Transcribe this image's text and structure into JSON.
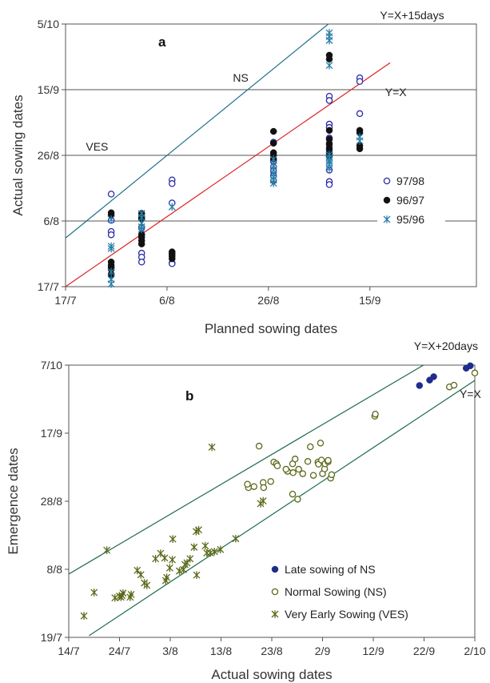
{
  "colors": {
    "blue_open": "#2a2aa8",
    "black": "#111111",
    "teal_star": "#2a7fa8",
    "line_a_upper": "#1f6e8c",
    "line_a_lower": "#e02020",
    "line_b": "#1f6b4a",
    "navy": "#1e2d8c",
    "olive": "#5a6a1a",
    "grid": "#555555"
  },
  "chart_data": [
    {
      "type": "scatter",
      "panel_label": "a",
      "xlabel": "Planned sowing dates",
      "ylabel": "Actual sowing dates",
      "xlim_days": [
        0,
        81
      ],
      "ylim_days": [
        0,
        80
      ],
      "xticks": [
        {
          "day": 0,
          "label": "17/7"
        },
        {
          "day": 20,
          "label": "6/8"
        },
        {
          "day": 40,
          "label": "26/8"
        },
        {
          "day": 60,
          "label": "15/9"
        }
      ],
      "yticks": [
        {
          "day": 0,
          "label": "17/7"
        },
        {
          "day": 20,
          "label": "6/8"
        },
        {
          "day": 40,
          "label": "26/8"
        },
        {
          "day": 60,
          "label": "15/9"
        },
        {
          "day": 80,
          "label": "5/10"
        }
      ],
      "grid": "horizontal",
      "legend_position": "right",
      "annotations": [
        {
          "text": "Y=X+15days",
          "x": 62,
          "y": 81.5
        },
        {
          "text": "Y=X",
          "x": 63,
          "y": 58
        },
        {
          "text": "NS",
          "x": 33,
          "y": 62.5
        },
        {
          "text": "VES",
          "x": 4,
          "y": 41.5
        }
      ],
      "lines": [
        {
          "label": "Y=X+15days",
          "points": [
            [
              0,
              14.8
            ],
            [
              53,
              81.5
            ]
          ],
          "color": "line_a_upper"
        },
        {
          "label": "Y=X",
          "points": [
            [
              0,
              0
            ],
            [
              64,
              68.2
            ]
          ],
          "color": "line_a_lower"
        }
      ],
      "series": [
        {
          "name": "97/98",
          "marker": "open-circle",
          "color": "blue_open",
          "points": [
            [
              9,
              28.2
            ],
            [
              9,
              20.2
            ],
            [
              9,
              16.8
            ],
            [
              9,
              15.8
            ],
            [
              9,
              3.5
            ],
            [
              15,
              21.5
            ],
            [
              15,
              18.0
            ],
            [
              15,
              15.9
            ],
            [
              15,
              10.2
            ],
            [
              15,
              9.0
            ],
            [
              15,
              7.5
            ],
            [
              21,
              32.5
            ],
            [
              21,
              31.4
            ],
            [
              21,
              25.5
            ],
            [
              21,
              7.2
            ],
            [
              21,
              7.0
            ],
            [
              41,
              44.0
            ],
            [
              41,
              38.3
            ],
            [
              41,
              36.5
            ],
            [
              41,
              35.2
            ],
            [
              41,
              33.8
            ],
            [
              41,
              32.3
            ],
            [
              52,
              49.5
            ],
            [
              52,
              48.5
            ],
            [
              52,
              45.3
            ],
            [
              52,
              43.2
            ],
            [
              52,
              40.3
            ],
            [
              52,
              35.5
            ],
            [
              52,
              32.0
            ],
            [
              52,
              31.1
            ],
            [
              52,
              58.0
            ],
            [
              52,
              56.7
            ],
            [
              52,
              41.6
            ],
            [
              58,
              63.6
            ],
            [
              58,
              62.5
            ],
            [
              58,
              52.7
            ]
          ]
        },
        {
          "name": "96/97",
          "marker": "filled-circle",
          "color": "black",
          "points": [
            [
              9,
              22.5
            ],
            [
              9,
              21.8
            ],
            [
              9,
              7.5
            ],
            [
              9,
              6.5
            ],
            [
              9,
              5.8
            ],
            [
              9,
              5.3
            ],
            [
              9,
              3.8
            ],
            [
              15,
              22.3
            ],
            [
              15,
              21.2
            ],
            [
              15,
              20.6
            ],
            [
              15,
              15.8
            ],
            [
              15,
              15.0
            ],
            [
              15,
              14.0
            ],
            [
              15,
              13.0
            ],
            [
              21,
              10.6
            ],
            [
              21,
              10.0
            ],
            [
              21,
              9.3
            ],
            [
              21,
              8.5
            ],
            [
              41,
              47.3
            ],
            [
              41,
              43.7
            ],
            [
              41,
              40.8
            ],
            [
              41,
              40.0
            ],
            [
              41,
              38.9
            ],
            [
              52,
              70.5
            ],
            [
              52,
              69.3
            ],
            [
              52,
              47.6
            ],
            [
              52,
              44.9
            ],
            [
              52,
              43.6
            ],
            [
              52,
              42.2
            ],
            [
              52,
              40.9
            ],
            [
              52,
              39.7
            ],
            [
              58,
              47.6
            ],
            [
              58,
              46.8
            ],
            [
              58,
              42.9
            ],
            [
              58,
              42.0
            ]
          ]
        },
        {
          "name": "95/96",
          "marker": "asterisk",
          "color": "teal_star",
          "points": [
            [
              9,
              20.5
            ],
            [
              9,
              12.3
            ],
            [
              9,
              11.6
            ],
            [
              9,
              4.5
            ],
            [
              9,
              2.2
            ],
            [
              9,
              0.8
            ],
            [
              15,
              22.3
            ],
            [
              15,
              21.0
            ],
            [
              15,
              19.3
            ],
            [
              15,
              18.2
            ],
            [
              15,
              17.5
            ],
            [
              21,
              24.3
            ],
            [
              41,
              38.8
            ],
            [
              41,
              36.8
            ],
            [
              41,
              35.6
            ],
            [
              41,
              34.4
            ],
            [
              41,
              33.4
            ],
            [
              41,
              32.5
            ],
            [
              41,
              31.5
            ],
            [
              52,
              77.3
            ],
            [
              52,
              76.2
            ],
            [
              52,
              75.0
            ],
            [
              52,
              67.4
            ],
            [
              52,
              40.2
            ],
            [
              52,
              39.3
            ],
            [
              52,
              38.5
            ],
            [
              52,
              38.0
            ],
            [
              52,
              37.3
            ],
            [
              52,
              36.1
            ],
            [
              58,
              45.6
            ],
            [
              58,
              44.4
            ]
          ]
        }
      ]
    },
    {
      "type": "scatter",
      "panel_label": "b",
      "xlabel": "Actual sowing dates",
      "ylabel": "Emergence dates",
      "xlim_days": [
        0,
        80
      ],
      "ylim_days": [
        0,
        80
      ],
      "xticks": [
        {
          "day": 0,
          "label": "14/7"
        },
        {
          "day": 10,
          "label": "24/7"
        },
        {
          "day": 20,
          "label": "3/8"
        },
        {
          "day": 30,
          "label": "13/8"
        },
        {
          "day": 40,
          "label": "23/8"
        },
        {
          "day": 50,
          "label": "2/9"
        },
        {
          "day": 60,
          "label": "12/9"
        },
        {
          "day": 70,
          "label": "22/9"
        },
        {
          "day": 80,
          "label": "2/10"
        }
      ],
      "yticks": [
        {
          "day": 0,
          "label": "19/7"
        },
        {
          "day": 20,
          "label": "8/8"
        },
        {
          "day": 40,
          "label": "28/8"
        },
        {
          "day": 60,
          "label": "17/9"
        },
        {
          "day": 80,
          "label": "7/10"
        }
      ],
      "grid": "none",
      "legend_position": "bottom-right",
      "annotations": [
        {
          "text": "Y=X+20days",
          "x": 68,
          "y": 84.5
        },
        {
          "text": "Y=X",
          "x": 77,
          "y": 70.3
        }
      ],
      "lines": [
        {
          "label": "Y=X+20days",
          "points": [
            [
              0,
              18.6
            ],
            [
              75,
              84.5
            ]
          ],
          "color": "line_b"
        },
        {
          "label": "Y=X",
          "points": [
            [
              4,
              0.5
            ],
            [
              80,
              75.5
            ]
          ],
          "color": "line_b"
        }
      ],
      "series": [
        {
          "name": "Late sowing of NS",
          "marker": "filled-circle",
          "color": "navy",
          "points": [
            [
              69.1,
              74.0
            ],
            [
              71.1,
              75.6
            ],
            [
              71.9,
              76.6
            ],
            [
              78.3,
              79.1
            ],
            [
              79.1,
              79.8
            ]
          ]
        },
        {
          "name": "Normal Sowing (NS)",
          "marker": "open-circle",
          "color": "olive",
          "points": [
            [
              37.5,
              56.2
            ],
            [
              40.4,
              51.5
            ],
            [
              40.9,
              51.0
            ],
            [
              41.1,
              50.4
            ],
            [
              43.1,
              48.8
            ],
            [
              44.2,
              48.4
            ],
            [
              45.3,
              49.4
            ],
            [
              46.1,
              48.1
            ],
            [
              47.1,
              51.7
            ],
            [
              47.6,
              56.0
            ],
            [
              48.2,
              47.6
            ],
            [
              49.1,
              51.5
            ],
            [
              49.2,
              50.9
            ],
            [
              49.8,
              52.1
            ],
            [
              49.6,
              57.1
            ],
            [
              50.0,
              48.1
            ],
            [
              50.4,
              49.5
            ],
            [
              50.5,
              51.0
            ],
            [
              51.1,
              51.6
            ],
            [
              51.1,
              52.0
            ],
            [
              51.6,
              46.8
            ],
            [
              51.8,
              47.8
            ],
            [
              42.8,
              49.4
            ],
            [
              44.1,
              51.0
            ],
            [
              44.6,
              52.4
            ],
            [
              39.8,
              45.8
            ],
            [
              38.3,
              45.5
            ],
            [
              36.5,
              44.3
            ],
            [
              35.4,
              44.0
            ],
            [
              35.2,
              45.0
            ],
            [
              44.1,
              42.1
            ],
            [
              45.1,
              40.6
            ],
            [
              38.4,
              44.0
            ],
            [
              60.3,
              65.0
            ],
            [
              60.4,
              65.6
            ],
            [
              75.0,
              73.6
            ],
            [
              75.9,
              74.1
            ],
            [
              80.0,
              77.7
            ]
          ]
        },
        {
          "name": "Very Early Sowing (VES)",
          "marker": "asterisk",
          "color": "olive",
          "points": [
            [
              3.0,
              6.3
            ],
            [
              5.0,
              13.2
            ],
            [
              7.5,
              25.6
            ],
            [
              9.1,
              11.6
            ],
            [
              10.0,
              12.1
            ],
            [
              10.3,
              11.8
            ],
            [
              10.5,
              12.3
            ],
            [
              10.7,
              13.0
            ],
            [
              12.3,
              12.6
            ],
            [
              12.1,
              11.8
            ],
            [
              13.5,
              19.7
            ],
            [
              14.2,
              18.4
            ],
            [
              14.9,
              16.0
            ],
            [
              15.4,
              15.3
            ],
            [
              17.1,
              23.1
            ],
            [
              18.1,
              24.7
            ],
            [
              18.9,
              23.3
            ],
            [
              19.1,
              16.7
            ],
            [
              19.3,
              17.6
            ],
            [
              19.9,
              20.4
            ],
            [
              20.4,
              22.8
            ],
            [
              20.5,
              28.9
            ],
            [
              21.8,
              19.5
            ],
            [
              22.6,
              19.9
            ],
            [
              22.9,
              21.4
            ],
            [
              23.3,
              21.9
            ],
            [
              23.9,
              23.1
            ],
            [
              24.7,
              26.5
            ],
            [
              25.1,
              31.1
            ],
            [
              25.6,
              31.6
            ],
            [
              25.2,
              18.3
            ],
            [
              26.9,
              26.9
            ],
            [
              27.2,
              24.8
            ],
            [
              27.9,
              24.8
            ],
            [
              28.7,
              25.2
            ],
            [
              29.9,
              25.8
            ],
            [
              28.2,
              55.9
            ],
            [
              32.9,
              29.0
            ],
            [
              37.8,
              39.3
            ],
            [
              38.3,
              40.1
            ]
          ]
        }
      ]
    }
  ]
}
